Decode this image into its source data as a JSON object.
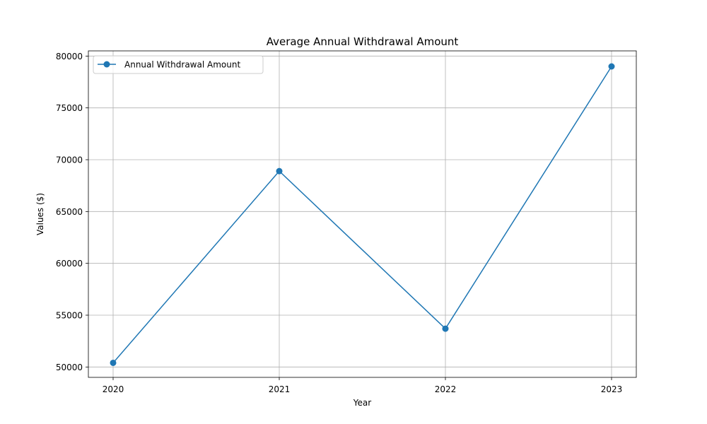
{
  "chart_data": {
    "type": "line",
    "title": "Average Annual Withdrawal Amount",
    "xlabel": "Year",
    "ylabel": "Values ($)",
    "categories": [
      "2020",
      "2021",
      "2022",
      "2023"
    ],
    "series": [
      {
        "name": "Annual Withdrawal Amount",
        "values": [
          50400,
          68900,
          53700,
          79000
        ],
        "color": "#1f77b4",
        "marker": "circle"
      }
    ],
    "ylim": [
      49000,
      80500
    ],
    "yticks": [
      50000,
      55000,
      60000,
      65000,
      70000,
      75000,
      80000
    ],
    "grid": true,
    "legend_position": "top-left"
  }
}
